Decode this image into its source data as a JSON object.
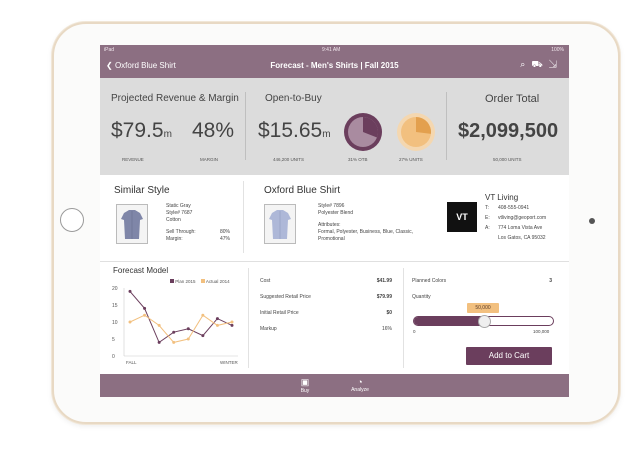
{
  "status_bar": {
    "device": "iPad",
    "time": "9:41 AM",
    "battery": "100%"
  },
  "nav": {
    "back_label": "Oxford Blue Shirt",
    "title": "Forecast - Men's Shirts | Fall 2015",
    "icons": [
      "search-icon",
      "cart-icon",
      "export-icon"
    ]
  },
  "colors": {
    "accent": "#8c6f82",
    "plum": "#6b3e5d",
    "peach": "#f2c07f",
    "panel": "#dcdcdc"
  },
  "kpis": {
    "projected_title": "Projected Revenue & Margin",
    "revenue_value": "$79.5",
    "revenue_unit": "m",
    "revenue_caption": "REVENUE",
    "margin_value": "48%",
    "margin_caption": "MARGIN",
    "otb_title": "Open-to-Buy",
    "otb_value": "$15.65",
    "otb_unit": "m",
    "otb_units_caption": "446,200 UNITS",
    "otb_pct": 31,
    "otb_pct_caption": "31% OTB",
    "units_pct": 27,
    "units_pct_caption": "27% UNITS",
    "order_title": "Order Total",
    "order_value": "$2,099,500",
    "order_units_caption": "50,000 UNITS"
  },
  "similar": {
    "title": "Similar Style",
    "lines": [
      "Static Gray",
      "Style# 7687",
      "Cotton"
    ],
    "sell_through_label": "Sell Through:",
    "sell_through_value": "80%",
    "margin_label": "Margin:",
    "margin_value": "47%"
  },
  "product": {
    "title": "Oxford Blue Shirt",
    "style": "Style# 7896",
    "fabric": "Polyester Blend",
    "attributes_label": "Attributes:",
    "attributes": "Formal, Polyester, Business, Blue, Classic, Promotional"
  },
  "vendor": {
    "logo": "VT",
    "name": "VT Living",
    "t_label": "T:",
    "t": "408-555-0941",
    "e_label": "E:",
    "e": "vtliving@geoport.com",
    "a_label": "A:",
    "address1": "774 Loma Vista Ave",
    "address2": "Los Gatos, CA 95032"
  },
  "forecast": {
    "title": "Forecast Model",
    "legend_plan": "Plan 2015",
    "legend_actual": "Actual 2014",
    "x_start": "FALL",
    "x_end": "WINTER",
    "y_ticks": [
      "20",
      "15",
      "10",
      "5",
      "0"
    ]
  },
  "chart_data": {
    "type": "line",
    "ylim": [
      0,
      20
    ],
    "y_ticks": [
      0,
      5,
      10,
      15,
      20
    ],
    "series": [
      {
        "name": "Plan 2015",
        "values": [
          19,
          14,
          4,
          7,
          8,
          6,
          11,
          9
        ]
      },
      {
        "name": "Actual 2014",
        "values": [
          10,
          12,
          9,
          4,
          5,
          12,
          9,
          10
        ]
      }
    ]
  },
  "pricing": {
    "cost_label": "Cost",
    "cost": "$41.99",
    "srp_label": "Suggested Retail Price",
    "srp": "$79.99",
    "irp_label": "Initial Retail Price",
    "irp": "$0",
    "markup_label": "Markup",
    "markup": "16%"
  },
  "order": {
    "planned_colors_label": "Planned Colors",
    "planned_colors": "3",
    "quantity_label": "Quantity",
    "quantity_bubble": "50,000",
    "slider_min": "0",
    "slider_max": "100,000",
    "quantity_fraction": 0.5,
    "add_to_cart": "Add to Cart"
  },
  "tabbar": {
    "buy": "Buy",
    "analyze": "Analyze"
  }
}
